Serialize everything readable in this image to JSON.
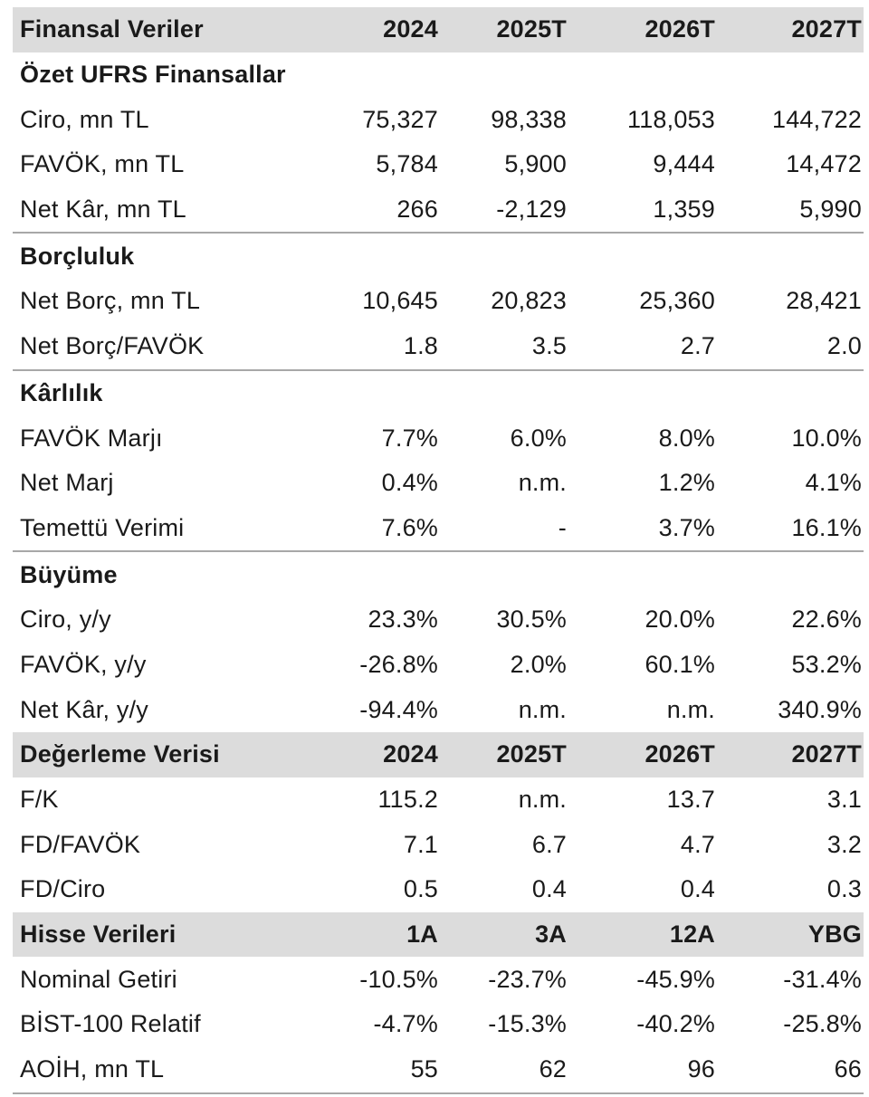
{
  "table": {
    "rows": [
      {
        "type": "header",
        "label": "Finansal Veriler",
        "values": [
          "2024",
          "2025T",
          "2026T",
          "2027T"
        ]
      },
      {
        "type": "section",
        "label": "Özet UFRS Finansallar",
        "values": [
          "",
          "",
          "",
          ""
        ]
      },
      {
        "type": "data",
        "label": "Ciro, mn TL",
        "values": [
          "75,327",
          "98,338",
          "118,053",
          "144,722"
        ]
      },
      {
        "type": "data",
        "label": "FAVÖK, mn TL",
        "values": [
          "5,784",
          "5,900",
          "9,444",
          "14,472"
        ]
      },
      {
        "type": "data-sep",
        "label": "Net Kâr, mn TL",
        "values": [
          "266",
          "-2,129",
          "1,359",
          "5,990"
        ]
      },
      {
        "type": "section",
        "label": "Borçluluk",
        "values": [
          "",
          "",
          "",
          ""
        ]
      },
      {
        "type": "data",
        "label": "Net Borç, mn TL",
        "values": [
          "10,645",
          "20,823",
          "25,360",
          "28,421"
        ]
      },
      {
        "type": "data-sep",
        "label": "Net Borç/FAVÖK",
        "values": [
          "1.8",
          "3.5",
          "2.7",
          "2.0"
        ]
      },
      {
        "type": "section",
        "label": "Kârlılık",
        "values": [
          "",
          "",
          "",
          ""
        ]
      },
      {
        "type": "data",
        "label": "FAVÖK Marjı",
        "values": [
          "7.7%",
          "6.0%",
          "8.0%",
          "10.0%"
        ]
      },
      {
        "type": "data",
        "label": "Net Marj",
        "values": [
          "0.4%",
          "n.m.",
          "1.2%",
          "4.1%"
        ]
      },
      {
        "type": "data-sep",
        "label": "Temettü Verimi",
        "values": [
          "7.6%",
          "-",
          "3.7%",
          "16.1%"
        ]
      },
      {
        "type": "section",
        "label": "Büyüme",
        "values": [
          "",
          "",
          "",
          ""
        ]
      },
      {
        "type": "data",
        "label": "Ciro, y/y",
        "values": [
          "23.3%",
          "30.5%",
          "20.0%",
          "22.6%"
        ]
      },
      {
        "type": "data",
        "label": "FAVÖK, y/y",
        "values": [
          "-26.8%",
          "2.0%",
          "60.1%",
          "53.2%"
        ]
      },
      {
        "type": "data",
        "label": "Net Kâr, y/y",
        "values": [
          "-94.4%",
          "n.m.",
          "n.m.",
          "340.9%"
        ]
      },
      {
        "type": "header",
        "label": "Değerleme Verisi",
        "values": [
          "2024",
          "2025T",
          "2026T",
          "2027T"
        ]
      },
      {
        "type": "data",
        "label": "F/K",
        "values": [
          "115.2",
          "n.m.",
          "13.7",
          "3.1"
        ]
      },
      {
        "type": "data",
        "label": "FD/FAVÖK",
        "values": [
          "7.1",
          "6.7",
          "4.7",
          "3.2"
        ]
      },
      {
        "type": "data",
        "label": "FD/Ciro",
        "values": [
          "0.5",
          "0.4",
          "0.4",
          "0.3"
        ]
      },
      {
        "type": "header",
        "label": "Hisse Verileri",
        "values": [
          "1A",
          "3A",
          "12A",
          "YBG"
        ]
      },
      {
        "type": "data",
        "label": "Nominal Getiri",
        "values": [
          "-10.5%",
          "-23.7%",
          "-45.9%",
          "-31.4%"
        ]
      },
      {
        "type": "data",
        "label": "BİST-100 Relatif",
        "values": [
          "-4.7%",
          "-15.3%",
          "-40.2%",
          "-25.8%"
        ]
      },
      {
        "type": "data-end",
        "label": "AOİH, mn TL",
        "values": [
          "55",
          "62",
          "96",
          "66"
        ]
      }
    ]
  }
}
